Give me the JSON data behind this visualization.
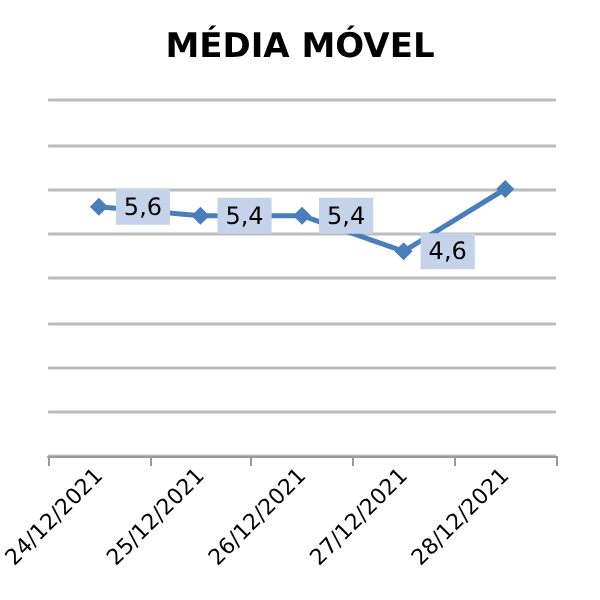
{
  "chart_data": {
    "type": "line",
    "title": "MÉDIA MÓVEL",
    "categories": [
      "24/12/2021",
      "25/12/2021",
      "26/12/2021",
      "27/12/2021",
      "28/12/2021"
    ],
    "series": [
      {
        "color": "#4a7ebb",
        "values": [
          5.6,
          5.4,
          5.4,
          4.6,
          6.0
        ],
        "value_labels": [
          "5,6",
          "5,4",
          "5,4",
          "4,6",
          null
        ]
      }
    ],
    "ylim": [
      0,
      8
    ],
    "yticks": [
      {
        "value": 0,
        "label": null
      },
      {
        "value": 1,
        "label": null
      },
      {
        "value": 2,
        "label": null
      },
      {
        "value": 3,
        "label": null
      },
      {
        "value": 4,
        "label": null
      },
      {
        "value": 5,
        "label": null
      },
      {
        "value": 6,
        "label": null
      },
      {
        "value": 7,
        "label": null
      },
      {
        "value": 8,
        "label": null
      }
    ],
    "tick_labels": "x",
    "grid": "y",
    "marker": "diamond",
    "line_style": "solid"
  }
}
